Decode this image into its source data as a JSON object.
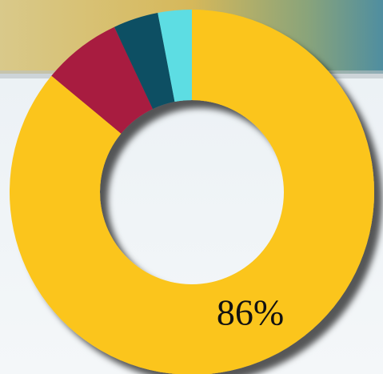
{
  "chart_data": {
    "type": "donut",
    "values": [
      86,
      7,
      4,
      3
    ],
    "value_labels": [
      "86%",
      null,
      null,
      null
    ],
    "colors": [
      "#fbc51a",
      "#a81c40",
      "#0f4f63",
      "#5ddde3"
    ]
  }
}
